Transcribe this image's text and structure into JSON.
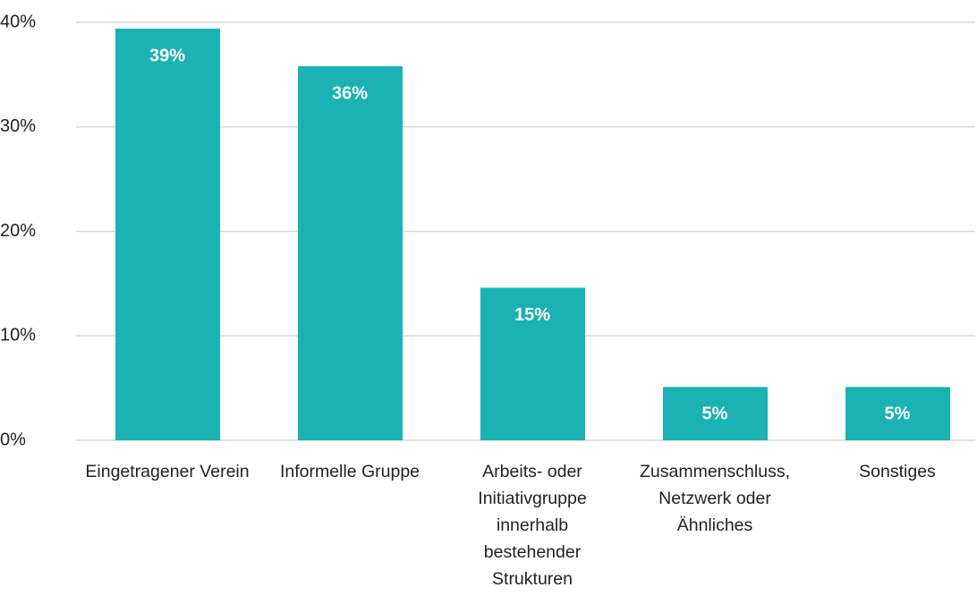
{
  "chart_data": {
    "type": "bar",
    "categories": [
      "Eingetragener Verein",
      "Informelle Gruppe",
      "Arbeits- oder Initiativgruppe innerhalb bestehender Strukturen",
      "Zusammenschluss, Netzwerk oder Ähnliches",
      "Sonstiges"
    ],
    "values": [
      39.4,
      35.8,
      14.6,
      5.1,
      5.1
    ],
    "value_labels": [
      "39%",
      "36%",
      "15%",
      "5%",
      "5%"
    ],
    "color": "#1ab2b2",
    "ylim": [
      0,
      40
    ],
    "yticks": [
      {
        "value": 0,
        "label": "0%"
      },
      {
        "value": 10,
        "label": "10%"
      },
      {
        "value": 20,
        "label": "20%"
      },
      {
        "value": 30,
        "label": "30%"
      },
      {
        "value": 40,
        "label": "40%"
      }
    ],
    "grid": true
  }
}
